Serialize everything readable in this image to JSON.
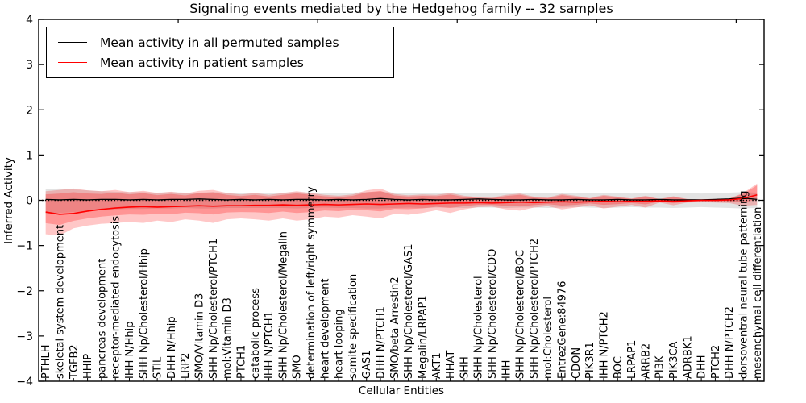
{
  "title": "Signaling events mediated by the Hedgehog family -- 32 samples",
  "legend": {
    "position": "upper left",
    "entries": [
      {
        "label": "Mean activity in all permuted samples",
        "color": "#000000"
      },
      {
        "label": "Mean activity in patient samples",
        "color": "#ff0000"
      }
    ]
  },
  "chart_data": {
    "type": "line",
    "title": "Signaling events mediated by the Hedgehog family -- 32 samples",
    "xlabel": "Cellular Entities",
    "ylabel": "Inferred Activity",
    "ylim": [
      -4,
      4
    ],
    "yticks": [
      4,
      3,
      2,
      1,
      0,
      -1,
      -2,
      -3,
      -4
    ],
    "grid": false,
    "zero_line": 0,
    "colors": {
      "permuted_line": "#000000",
      "patient_line": "#ff0000",
      "permuted_band": "#b0b0b0",
      "patient_band": "#ff0000",
      "zero_dotted": "#000000"
    },
    "categories": [
      "PTHLH",
      "skeletal system development",
      "TGFB2",
      "HHIP",
      "pancreas development",
      "receptor-mediated endocytosis",
      "IHH N/Hhip",
      "SHH Np/Cholesterol/Hhip",
      "STIL",
      "DHH N/Hhip",
      "LRP2",
      "SMO/Vitamin D3",
      "SHH Np/Cholesterol/PTCH1",
      "mol:Vitamin D3",
      "PTCH1",
      "catabolic process",
      "IHH N/PTCH1",
      "SHH Np/Cholesterol/Megalin",
      "SMO",
      "determination of left/right symmetry",
      "heart development",
      "heart looping",
      "somite specification",
      "GAS1",
      "DHH N/PTCH1",
      "SMO/beta Arrestin2",
      "SHH Np/Cholesterol/GAS1",
      "Megalin/LRPAP1",
      "AKT1",
      "HHAT",
      "SHH",
      "SHH Np/Cholesterol",
      "SHH Np/Cholesterol/CDO",
      "IHH",
      "SHH Np/Cholesterol/BOC",
      "SHH Np/Cholesterol/PTCH2",
      "mol:Cholesterol",
      "EntrezGene:84976",
      "CDON",
      "PIK3R1",
      "IHH N/PTCH2",
      "BOC",
      "LRPAP1",
      "ARRB2",
      "PI3K",
      "PIK3CA",
      "ADRBK1",
      "DHH",
      "PTCH2",
      "DHH N/PTCH2",
      "dorsoventral neural tube patterning",
      "mesenchymal cell differentiation"
    ],
    "series": [
      {
        "name": "Mean activity in all permuted samples",
        "color": "#000000",
        "values": [
          0.02,
          0.01,
          0.02,
          0.01,
          0.02,
          0.02,
          0.01,
          0.02,
          0.01,
          0.02,
          0.02,
          0.03,
          0.02,
          0.01,
          0.02,
          0.01,
          0.02,
          0.01,
          0.02,
          0.02,
          0.01,
          0.02,
          0.01,
          0.02,
          0.04,
          0.02,
          0.01,
          0.02,
          0.01,
          0.01,
          0.02,
          0.03,
          0.02,
          0.01,
          0.01,
          0.02,
          0.01,
          0.01,
          0.02,
          0.01,
          0.01,
          0.02,
          0.01,
          0.01,
          0.02,
          0.01,
          0.01,
          0.01,
          0.02,
          0.03,
          0.05,
          0.02
        ]
      },
      {
        "name": "Mean activity in patient samples",
        "color": "#ff0000",
        "values": [
          -0.26,
          -0.31,
          -0.29,
          -0.24,
          -0.2,
          -0.17,
          -0.15,
          -0.14,
          -0.15,
          -0.14,
          -0.13,
          -0.12,
          -0.13,
          -0.12,
          -0.12,
          -0.11,
          -0.11,
          -0.1,
          -0.11,
          -0.1,
          -0.09,
          -0.1,
          -0.09,
          -0.08,
          -0.09,
          -0.08,
          -0.07,
          -0.08,
          -0.07,
          -0.06,
          -0.06,
          -0.05,
          -0.06,
          -0.05,
          -0.04,
          -0.05,
          -0.04,
          -0.03,
          -0.04,
          -0.03,
          -0.02,
          -0.03,
          -0.02,
          -0.02,
          -0.01,
          -0.02,
          -0.01,
          0.0,
          0.0,
          0.01,
          0.04,
          0.12
        ]
      }
    ],
    "bands": [
      {
        "name": "permuted-range",
        "color": "#b0b0b0",
        "opacity": 0.35,
        "upper": [
          0.25,
          0.26,
          0.24,
          0.22,
          0.2,
          0.19,
          0.18,
          0.18,
          0.17,
          0.18,
          0.17,
          0.17,
          0.18,
          0.17,
          0.16,
          0.17,
          0.16,
          0.17,
          0.18,
          0.17,
          0.16,
          0.16,
          0.17,
          0.18,
          0.19,
          0.17,
          0.16,
          0.17,
          0.16,
          0.16,
          0.17,
          0.16,
          0.16,
          0.17,
          0.16,
          0.16,
          0.17,
          0.16,
          0.15,
          0.16,
          0.17,
          0.16,
          0.15,
          0.16,
          0.16,
          0.17,
          0.16,
          0.15,
          0.16,
          0.17,
          0.18,
          0.17
        ],
        "lower": [
          -0.3,
          -0.28,
          -0.26,
          -0.24,
          -0.22,
          -0.2,
          -0.19,
          -0.19,
          -0.18,
          -0.18,
          -0.17,
          -0.18,
          -0.18,
          -0.17,
          -0.17,
          -0.17,
          -0.17,
          -0.17,
          -0.18,
          -0.17,
          -0.16,
          -0.17,
          -0.17,
          -0.18,
          -0.18,
          -0.17,
          -0.16,
          -0.17,
          -0.16,
          -0.16,
          -0.17,
          -0.16,
          -0.16,
          -0.17,
          -0.16,
          -0.16,
          -0.17,
          -0.16,
          -0.15,
          -0.16,
          -0.17,
          -0.16,
          -0.15,
          -0.16,
          -0.16,
          -0.17,
          -0.16,
          -0.15,
          -0.16,
          -0.17,
          -0.18,
          -0.17
        ]
      },
      {
        "name": "patient-range",
        "color": "#ff0000",
        "opacity": 0.22,
        "upper": [
          0.2,
          0.23,
          0.26,
          0.22,
          0.2,
          0.23,
          0.18,
          0.21,
          0.16,
          0.19,
          0.15,
          0.21,
          0.23,
          0.16,
          0.13,
          0.16,
          0.12,
          0.16,
          0.2,
          0.16,
          0.12,
          0.1,
          0.13,
          0.22,
          0.26,
          0.14,
          0.11,
          0.13,
          0.12,
          0.16,
          0.1,
          0.07,
          0.06,
          0.12,
          0.15,
          0.08,
          0.06,
          0.14,
          0.1,
          0.05,
          0.12,
          0.08,
          0.04,
          0.1,
          0.03,
          0.09,
          0.03,
          0.02,
          0.03,
          0.04,
          0.16,
          0.37
        ],
        "lower": [
          -0.75,
          -0.78,
          -0.62,
          -0.56,
          -0.52,
          -0.5,
          -0.48,
          -0.5,
          -0.45,
          -0.48,
          -0.42,
          -0.45,
          -0.5,
          -0.42,
          -0.4,
          -0.42,
          -0.45,
          -0.4,
          -0.45,
          -0.42,
          -0.36,
          -0.38,
          -0.33,
          -0.36,
          -0.4,
          -0.3,
          -0.32,
          -0.28,
          -0.22,
          -0.28,
          -0.2,
          -0.15,
          -0.14,
          -0.2,
          -0.23,
          -0.16,
          -0.13,
          -0.2,
          -0.16,
          -0.11,
          -0.18,
          -0.14,
          -0.1,
          -0.16,
          -0.05,
          -0.11,
          -0.05,
          -0.04,
          -0.05,
          -0.06,
          -0.12,
          -0.1
        ]
      }
    ]
  }
}
